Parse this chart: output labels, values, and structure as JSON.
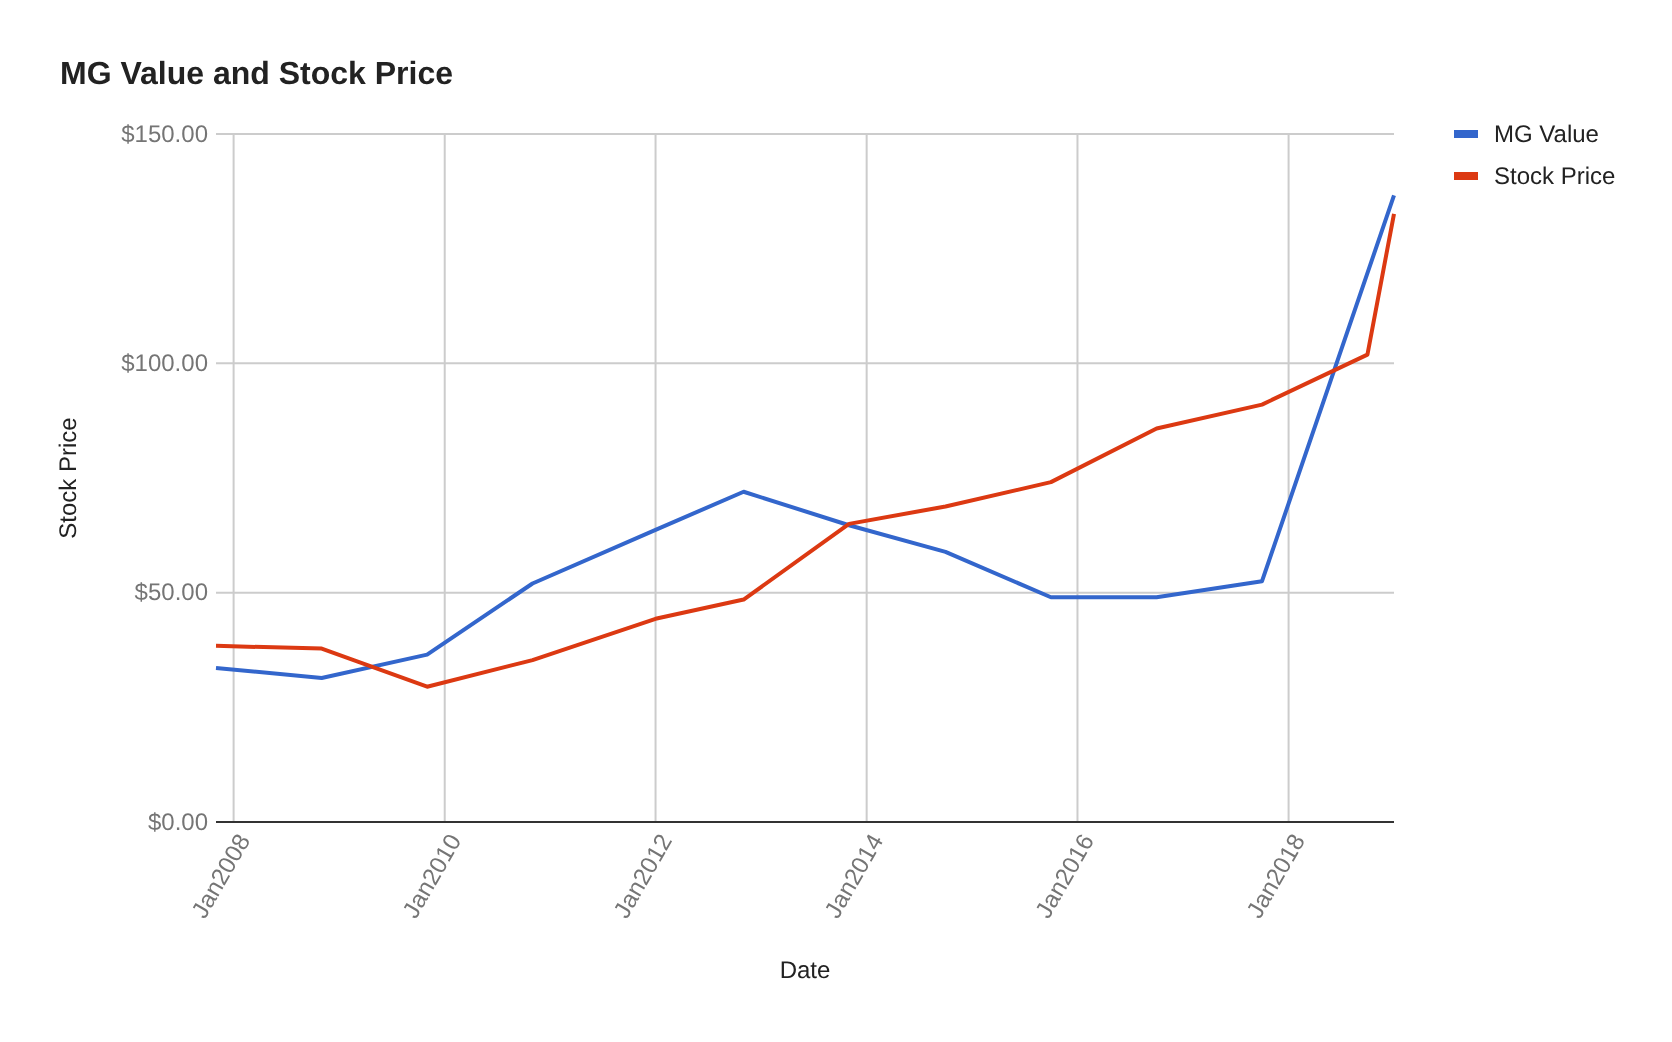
{
  "chart_data": {
    "type": "line",
    "title": "MG Value and Stock Price",
    "xlabel": "Date",
    "ylabel": "Stock Price",
    "x": [
      "2007-11",
      "2008-11",
      "2009-11",
      "2010-11",
      "2012-01",
      "2012-11",
      "2013-11",
      "2014-10",
      "2015-10",
      "2016-10",
      "2017-10",
      "2018-10",
      "2019-01"
    ],
    "series": [
      {
        "name": "MG Value",
        "color": "#3366cc",
        "x": [
          "2007-11",
          "2008-11",
          "2009-11",
          "2010-11",
          "2012-01",
          "2012-11",
          "2013-11",
          "2014-10",
          "2015-10",
          "2016-10",
          "2017-10",
          "2019-01"
        ],
        "values": [
          33.6,
          31.4,
          36.5,
          52.0,
          63.7,
          72.0,
          64.7,
          58.9,
          49.0,
          49.0,
          52.5,
          136.6
        ]
      },
      {
        "name": "Stock Price",
        "color": "#dc3912",
        "values": [
          38.4,
          37.8,
          29.5,
          35.3,
          44.3,
          48.5,
          65.0,
          68.8,
          74.1,
          85.8,
          91.0,
          101.9,
          132.6
        ]
      }
    ],
    "xlim": [
      "2007-11",
      "2019-01"
    ],
    "xticks": [
      {
        "value": "2008-01",
        "label": "Jan2008"
      },
      {
        "value": "2010-01",
        "label": "Jan2010"
      },
      {
        "value": "2012-01",
        "label": "Jan2012"
      },
      {
        "value": "2014-01",
        "label": "Jan2014"
      },
      {
        "value": "2016-01",
        "label": "Jan2016"
      },
      {
        "value": "2018-01",
        "label": "Jan2018"
      }
    ],
    "ylim": [
      0,
      150
    ],
    "yticks": [
      {
        "value": 0,
        "label": "$0.00"
      },
      {
        "value": 50,
        "label": "$50.00"
      },
      {
        "value": 100,
        "label": "$100.00"
      },
      {
        "value": 150,
        "label": "$150.00"
      }
    ],
    "grid": true,
    "legend": "top right",
    "marker": "none",
    "line_style": "solid"
  }
}
